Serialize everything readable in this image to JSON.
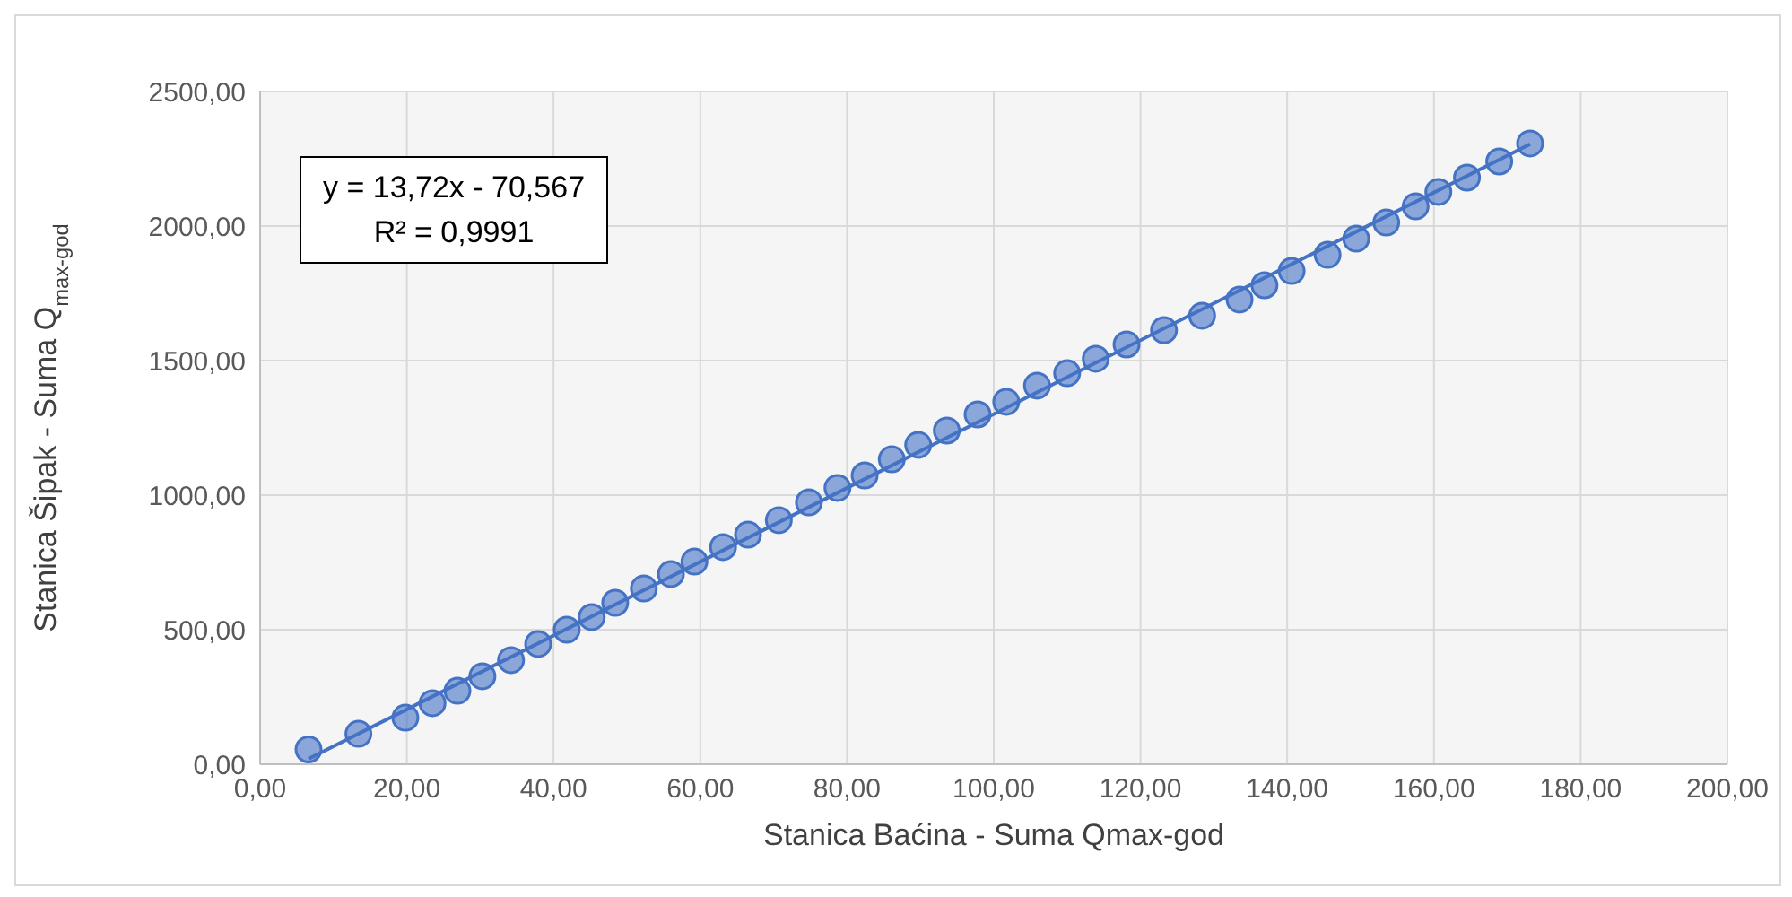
{
  "chart_data": {
    "type": "scatter",
    "xlabel": "Stanica Baćina - Suma Qmax-god",
    "ylabel": "Stanica Šipak - Suma Q$_{max-god}$",
    "xlim": [
      0,
      200
    ],
    "xticks": [
      {
        "value": 0,
        "label": "0,00"
      },
      {
        "value": 20,
        "label": "20,00"
      },
      {
        "value": 40,
        "label": "40,00"
      },
      {
        "value": 60,
        "label": "60,00"
      },
      {
        "value": 80,
        "label": "80,00"
      },
      {
        "value": 100,
        "label": "100,00"
      },
      {
        "value": 120,
        "label": "120,00"
      },
      {
        "value": 140,
        "label": "140,00"
      },
      {
        "value": 160,
        "label": "160,00"
      },
      {
        "value": 180,
        "label": "180,00"
      },
      {
        "value": 200,
        "label": "200,00"
      }
    ],
    "ylim": [
      0,
      2500
    ],
    "yticks": [
      {
        "value": 0,
        "label": "0,00"
      },
      {
        "value": 500,
        "label": "500,00"
      },
      {
        "value": 1000,
        "label": "1000,00"
      },
      {
        "value": 1500,
        "label": "1500,00"
      },
      {
        "value": 2000,
        "label": "2000,00"
      },
      {
        "value": 2500,
        "label": "2500,00"
      }
    ],
    "grid": true,
    "annotations": [
      "y = 13,72x - 70,567",
      "R² = 0,9991"
    ],
    "series": [
      {
        "color": "#4472c4",
        "marker": "circle",
        "x": [
          6.6,
          13.4,
          19.8,
          23.5,
          26.9,
          30.3,
          34.2,
          37.9,
          41.8,
          45.2,
          48.4,
          52.3,
          56.0,
          59.2,
          63.1,
          66.5,
          70.7,
          74.8,
          78.7,
          82.4,
          86.1,
          89.7,
          93.6,
          97.8,
          101.7,
          105.9,
          110.0,
          113.9,
          118.1,
          123.2,
          128.4,
          133.5,
          136.9,
          140.6,
          145.5,
          149.4,
          153.5,
          157.5,
          160.6,
          164.5,
          168.9,
          173.1
        ],
        "values": [
          55,
          113,
          173,
          227,
          273,
          327,
          387,
          447,
          500,
          547,
          600,
          653,
          707,
          753,
          807,
          853,
          907,
          973,
          1027,
          1073,
          1133,
          1187,
          1240,
          1300,
          1347,
          1407,
          1453,
          1507,
          1560,
          1613,
          1667,
          1727,
          1780,
          1833,
          1893,
          1953,
          2013,
          2073,
          2127,
          2180,
          2240,
          2307
        ]
      },
      {
        "type": "line",
        "color": "#4472c4",
        "x": [
          6.6,
          173.1
        ],
        "values": [
          20,
          2304
        ]
      }
    ]
  }
}
